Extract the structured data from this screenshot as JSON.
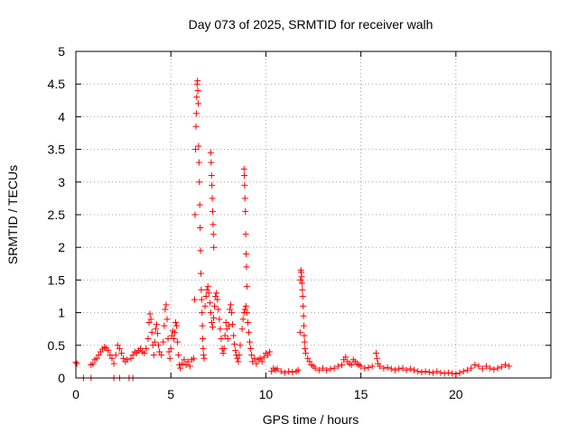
{
  "chart_data": {
    "type": "scatter",
    "title": "Day 073 of 2025, SRMTID for receiver walh",
    "xlabel": "GPS time / hours",
    "ylabel": "SRMTID / TECUs",
    "xlim": [
      0,
      25
    ],
    "ylim": [
      0,
      5
    ],
    "x_ticks": [
      0,
      5,
      10,
      15,
      20
    ],
    "x_tick_labels": [
      "0",
      "5",
      "10",
      "15",
      "20"
    ],
    "y_ticks": [
      0,
      0.5,
      1,
      1.5,
      2,
      2.5,
      3,
      3.5,
      4,
      4.5,
      5
    ],
    "y_tick_labels": [
      "0",
      "0.5",
      "1",
      "1.5",
      "2",
      "2.5",
      "3",
      "3.5",
      "4",
      "4.5",
      "5"
    ],
    "grid": true,
    "marker": "+",
    "series": [
      {
        "name": "walh",
        "color": "#ff0000",
        "points": [
          [
            0.0,
            0.24
          ],
          [
            0.05,
            0.22
          ],
          [
            0.4,
            0.0
          ],
          [
            0.8,
            0.0
          ],
          [
            0.8,
            0.2
          ],
          [
            0.9,
            0.22
          ],
          [
            1.0,
            0.28
          ],
          [
            1.1,
            0.3
          ],
          [
            1.2,
            0.35
          ],
          [
            1.3,
            0.4
          ],
          [
            1.4,
            0.44
          ],
          [
            1.5,
            0.47
          ],
          [
            1.6,
            0.46
          ],
          [
            1.7,
            0.42
          ],
          [
            1.8,
            0.35
          ],
          [
            1.9,
            0.3
          ],
          [
            2.0,
            0.22
          ],
          [
            2.1,
            0.35
          ],
          [
            2.2,
            0.5
          ],
          [
            2.3,
            0.45
          ],
          [
            2.4,
            0.38
          ],
          [
            2.5,
            0.3
          ],
          [
            2.6,
            0.25
          ],
          [
            2.7,
            0.28
          ],
          [
            2.0,
            0.0
          ],
          [
            2.3,
            0.0
          ],
          [
            2.8,
            0.0
          ],
          [
            3.0,
            0.0
          ],
          [
            2.9,
            0.3
          ],
          [
            3.0,
            0.35
          ],
          [
            3.1,
            0.4
          ],
          [
            3.2,
            0.38
          ],
          [
            3.3,
            0.42
          ],
          [
            3.4,
            0.45
          ],
          [
            3.5,
            0.4
          ],
          [
            3.6,
            0.38
          ],
          [
            3.7,
            0.45
          ],
          [
            3.8,
            0.6
          ],
          [
            3.85,
            0.85
          ],
          [
            3.9,
            0.98
          ],
          [
            3.95,
            0.9
          ],
          [
            4.0,
            0.7
          ],
          [
            4.05,
            0.5
          ],
          [
            4.1,
            0.35
          ],
          [
            4.15,
            0.55
          ],
          [
            4.2,
            0.75
          ],
          [
            4.25,
            0.82
          ],
          [
            4.3,
            0.68
          ],
          [
            4.35,
            0.5
          ],
          [
            4.4,
            0.4
          ],
          [
            4.5,
            0.35
          ],
          [
            4.6,
            0.55
          ],
          [
            4.65,
            0.8
          ],
          [
            4.7,
            1.05
          ],
          [
            4.75,
            1.12
          ],
          [
            4.8,
            0.9
          ],
          [
            4.85,
            0.6
          ],
          [
            4.9,
            0.4
          ],
          [
            4.95,
            0.3
          ],
          [
            5.0,
            0.45
          ],
          [
            5.05,
            0.65
          ],
          [
            5.1,
            0.72
          ],
          [
            5.15,
            0.6
          ],
          [
            5.2,
            0.7
          ],
          [
            5.25,
            0.85
          ],
          [
            5.3,
            0.8
          ],
          [
            5.35,
            0.55
          ],
          [
            5.4,
            0.35
          ],
          [
            5.45,
            0.2
          ],
          [
            5.5,
            0.15
          ],
          [
            5.6,
            0.22
          ],
          [
            5.7,
            0.28
          ],
          [
            5.8,
            0.2
          ],
          [
            5.9,
            0.25
          ],
          [
            6.0,
            0.18
          ],
          [
            6.1,
            0.28
          ],
          [
            6.2,
            0.3
          ],
          [
            6.25,
            1.2
          ],
          [
            6.27,
            2.5
          ],
          [
            6.3,
            3.5
          ],
          [
            6.32,
            3.85
          ],
          [
            6.34,
            4.05
          ],
          [
            6.36,
            4.3
          ],
          [
            6.38,
            4.5
          ],
          [
            6.4,
            4.55
          ],
          [
            6.42,
            4.4
          ],
          [
            6.44,
            4.2
          ],
          [
            6.46,
            3.55
          ],
          [
            6.48,
            3.3
          ],
          [
            6.5,
            3.0
          ],
          [
            6.52,
            2.65
          ],
          [
            6.54,
            2.3
          ],
          [
            6.56,
            1.95
          ],
          [
            6.58,
            1.6
          ],
          [
            6.6,
            1.35
          ],
          [
            6.62,
            1.2
          ],
          [
            6.64,
            1.0
          ],
          [
            6.66,
            0.8
          ],
          [
            6.68,
            0.6
          ],
          [
            6.7,
            0.45
          ],
          [
            6.72,
            0.35
          ],
          [
            6.75,
            0.3
          ],
          [
            6.8,
            1.1
          ],
          [
            6.85,
            1.25
          ],
          [
            6.9,
            1.35
          ],
          [
            6.95,
            1.4
          ],
          [
            7.0,
            1.3
          ],
          [
            7.05,
            1.15
          ],
          [
            7.1,
            1.0
          ],
          [
            7.15,
            0.85
          ],
          [
            7.2,
            0.78
          ],
          [
            7.25,
            0.92
          ],
          [
            7.1,
            3.45
          ],
          [
            7.12,
            3.3
          ],
          [
            7.14,
            3.1
          ],
          [
            7.16,
            2.95
          ],
          [
            7.18,
            2.75
          ],
          [
            7.2,
            2.55
          ],
          [
            7.22,
            2.35
          ],
          [
            7.24,
            2.2
          ],
          [
            7.26,
            2.0
          ],
          [
            7.3,
            1.1
          ],
          [
            7.35,
            1.25
          ],
          [
            7.4,
            1.3
          ],
          [
            7.45,
            1.2
          ],
          [
            7.5,
            1.05
          ],
          [
            7.55,
            0.9
          ],
          [
            7.6,
            0.75
          ],
          [
            7.65,
            0.6
          ],
          [
            7.7,
            0.45
          ],
          [
            7.75,
            0.38
          ],
          [
            7.8,
            0.45
          ],
          [
            7.85,
            0.65
          ],
          [
            7.9,
            0.85
          ],
          [
            7.95,
            0.75
          ],
          [
            8.0,
            0.6
          ],
          [
            8.05,
            0.8
          ],
          [
            8.1,
            1.05
          ],
          [
            8.15,
            1.12
          ],
          [
            8.2,
            1.0
          ],
          [
            8.25,
            0.82
          ],
          [
            8.3,
            0.65
          ],
          [
            8.35,
            0.52
          ],
          [
            8.4,
            0.42
          ],
          [
            8.45,
            0.35
          ],
          [
            8.5,
            0.3
          ],
          [
            8.55,
            0.25
          ],
          [
            8.6,
            0.35
          ],
          [
            8.65,
            0.5
          ],
          [
            8.75,
            0.75
          ],
          [
            8.8,
            0.9
          ],
          [
            8.85,
            1.0
          ],
          [
            8.9,
            1.05
          ],
          [
            8.95,
            1.1
          ],
          [
            9.0,
            1.0
          ],
          [
            9.05,
            0.85
          ],
          [
            9.1,
            0.7
          ],
          [
            9.15,
            0.55
          ],
          [
            9.2,
            0.45
          ],
          [
            8.85,
            3.2
          ],
          [
            8.86,
            3.1
          ],
          [
            8.88,
            2.95
          ],
          [
            8.9,
            2.75
          ],
          [
            8.92,
            2.55
          ],
          [
            8.94,
            2.2
          ],
          [
            8.96,
            1.9
          ],
          [
            8.98,
            1.7
          ],
          [
            9.0,
            1.4
          ],
          [
            9.25,
            0.35
          ],
          [
            9.3,
            0.25
          ],
          [
            9.4,
            0.3
          ],
          [
            9.5,
            0.22
          ],
          [
            9.6,
            0.28
          ],
          [
            9.7,
            0.3
          ],
          [
            9.8,
            0.25
          ],
          [
            9.9,
            0.32
          ],
          [
            10.0,
            0.38
          ],
          [
            10.1,
            0.35
          ],
          [
            10.2,
            0.4
          ],
          [
            10.3,
            0.1
          ],
          [
            10.4,
            0.15
          ],
          [
            10.5,
            0.12
          ],
          [
            10.6,
            0.14
          ],
          [
            10.8,
            0.1
          ],
          [
            11.0,
            0.08
          ],
          [
            11.2,
            0.1
          ],
          [
            11.4,
            0.09
          ],
          [
            11.6,
            0.1
          ],
          [
            11.7,
            0.12
          ],
          [
            11.8,
            0.7
          ],
          [
            11.82,
            1.5
          ],
          [
            11.84,
            1.65
          ],
          [
            11.86,
            1.62
          ],
          [
            11.88,
            1.55
          ],
          [
            11.9,
            1.45
          ],
          [
            11.92,
            1.35
          ],
          [
            11.94,
            1.25
          ],
          [
            11.96,
            1.1
          ],
          [
            11.98,
            0.95
          ],
          [
            12.0,
            0.8
          ],
          [
            12.02,
            0.65
          ],
          [
            12.04,
            0.55
          ],
          [
            12.06,
            0.45
          ],
          [
            12.1,
            0.38
          ],
          [
            12.2,
            0.3
          ],
          [
            12.3,
            0.25
          ],
          [
            12.4,
            0.2
          ],
          [
            12.5,
            0.18
          ],
          [
            12.6,
            0.15
          ],
          [
            12.8,
            0.12
          ],
          [
            13.0,
            0.15
          ],
          [
            13.2,
            0.12
          ],
          [
            13.4,
            0.14
          ],
          [
            13.6,
            0.15
          ],
          [
            13.8,
            0.18
          ],
          [
            14.0,
            0.2
          ],
          [
            14.1,
            0.28
          ],
          [
            14.2,
            0.32
          ],
          [
            14.3,
            0.25
          ],
          [
            14.4,
            0.22
          ],
          [
            14.5,
            0.2
          ],
          [
            14.6,
            0.28
          ],
          [
            14.7,
            0.25
          ],
          [
            14.8,
            0.22
          ],
          [
            14.9,
            0.2
          ],
          [
            15.0,
            0.18
          ],
          [
            15.2,
            0.15
          ],
          [
            15.4,
            0.16
          ],
          [
            15.6,
            0.18
          ],
          [
            15.8,
            0.38
          ],
          [
            15.85,
            0.3
          ],
          [
            15.9,
            0.22
          ],
          [
            16.0,
            0.18
          ],
          [
            16.2,
            0.15
          ],
          [
            16.4,
            0.16
          ],
          [
            16.6,
            0.14
          ],
          [
            16.8,
            0.12
          ],
          [
            17.0,
            0.14
          ],
          [
            17.2,
            0.15
          ],
          [
            17.4,
            0.12
          ],
          [
            17.6,
            0.14
          ],
          [
            17.8,
            0.12
          ],
          [
            18.0,
            0.1
          ],
          [
            18.2,
            0.09
          ],
          [
            18.4,
            0.1
          ],
          [
            18.6,
            0.09
          ],
          [
            18.8,
            0.08
          ],
          [
            19.0,
            0.1
          ],
          [
            19.2,
            0.08
          ],
          [
            19.4,
            0.07
          ],
          [
            19.6,
            0.08
          ],
          [
            19.8,
            0.07
          ],
          [
            20.0,
            0.06
          ],
          [
            20.2,
            0.08
          ],
          [
            20.4,
            0.1
          ],
          [
            20.6,
            0.12
          ],
          [
            20.8,
            0.15
          ],
          [
            21.0,
            0.2
          ],
          [
            21.2,
            0.18
          ],
          [
            21.4,
            0.14
          ],
          [
            21.6,
            0.18
          ],
          [
            21.8,
            0.15
          ],
          [
            22.0,
            0.13
          ],
          [
            22.2,
            0.15
          ],
          [
            22.4,
            0.17
          ],
          [
            22.6,
            0.2
          ],
          [
            22.8,
            0.18
          ]
        ]
      }
    ]
  }
}
